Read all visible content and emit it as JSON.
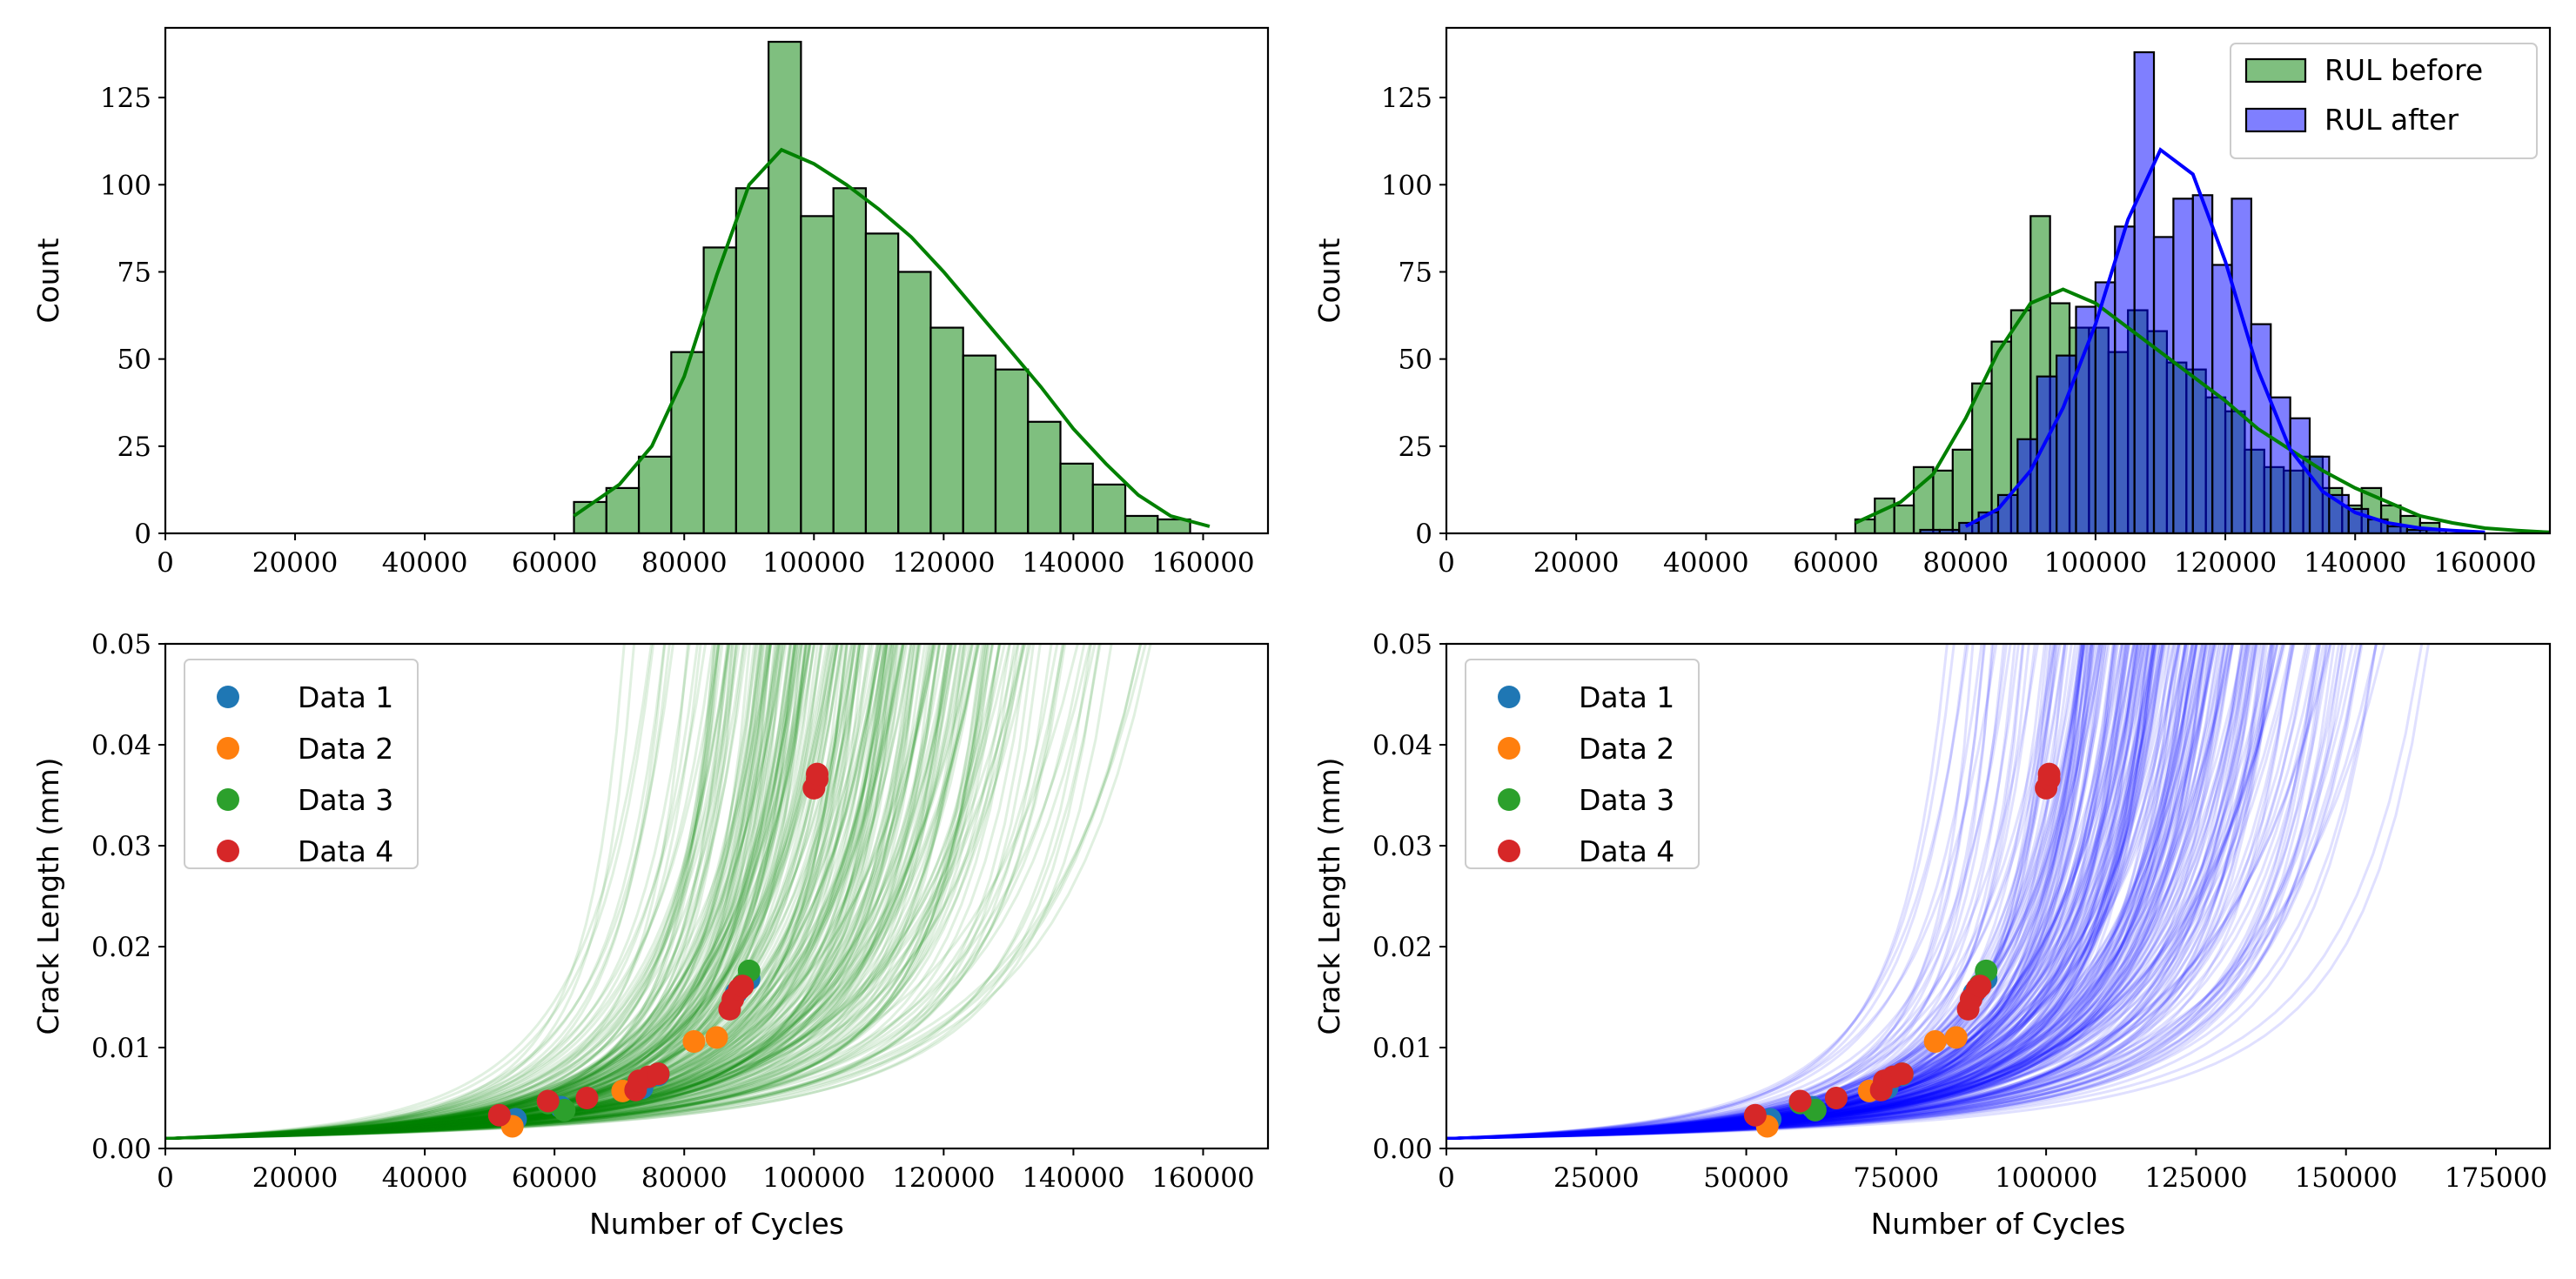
{
  "chart_data": [
    {
      "panel": "top-left",
      "type": "histogram",
      "ylabel": "Count",
      "xlim": [
        0,
        170000
      ],
      "ylim": [
        0,
        145
      ],
      "xticks": [
        0,
        20000,
        40000,
        60000,
        80000,
        100000,
        120000,
        140000,
        160000
      ],
      "yticks": [
        0,
        25,
        50,
        75,
        100,
        125
      ],
      "bin_start": 63000,
      "bin_width": 5000,
      "series": [
        {
          "color": "#008000",
          "counts": [
            9,
            13,
            22,
            52,
            82,
            99,
            141,
            91,
            99,
            86,
            75,
            59,
            51,
            47,
            32,
            20,
            14,
            5,
            4
          ],
          "kde_x": [
            63000,
            70000,
            75000,
            80000,
            85000,
            90000,
            95000,
            100000,
            105000,
            110000,
            115000,
            120000,
            125000,
            130000,
            135000,
            140000,
            145000,
            150000,
            155000,
            161000
          ],
          "kde_y": [
            5,
            14,
            25,
            45,
            74,
            100,
            110,
            106,
            100,
            93,
            85,
            75,
            64,
            53,
            42,
            30,
            20,
            11,
            5,
            2
          ]
        }
      ]
    },
    {
      "panel": "top-right",
      "type": "histogram",
      "ylabel": "Count",
      "xlim": [
        0,
        170000
      ],
      "ylim": [
        0,
        145
      ],
      "xticks": [
        0,
        20000,
        40000,
        60000,
        80000,
        100000,
        120000,
        140000,
        160000
      ],
      "yticks": [
        0,
        25,
        50,
        75,
        100,
        125
      ],
      "legend": "top-right",
      "series": [
        {
          "name": "RUL before",
          "color": "#008000",
          "bin_start": 63000,
          "bin_width": 3000,
          "counts": [
            4,
            10,
            8,
            19,
            18,
            24,
            43,
            55,
            64,
            91,
            66,
            59,
            59,
            52,
            64,
            58,
            49,
            47,
            39,
            35,
            24,
            19,
            18,
            22,
            13,
            8,
            13,
            8,
            5,
            3
          ],
          "kde_x": [
            63000,
            70000,
            75000,
            80000,
            85000,
            90000,
            95000,
            100000,
            105000,
            110000,
            115000,
            120000,
            125000,
            130000,
            135000,
            140000,
            145000,
            150000,
            155000,
            160000,
            165000,
            170000
          ],
          "kde_y": [
            3,
            9,
            17,
            33,
            52,
            66,
            70,
            66,
            59,
            52,
            45,
            38,
            30,
            24,
            18,
            13,
            9,
            5,
            3,
            1.5,
            0.8,
            0.3
          ]
        },
        {
          "name": "RUL after",
          "color": "#0000ff",
          "bin_start": 73000,
          "bin_width": 3000,
          "counts": [
            1,
            1,
            3,
            6,
            11,
            27,
            45,
            51,
            65,
            72,
            88,
            138,
            85,
            96,
            97,
            77,
            96,
            60,
            39,
            33,
            22,
            11,
            7,
            4,
            2,
            1,
            1
          ],
          "kde_x": [
            80000,
            85000,
            90000,
            95000,
            100000,
            105000,
            110000,
            115000,
            120000,
            125000,
            130000,
            135000,
            140000,
            145000,
            150000,
            155000,
            160000
          ],
          "kde_y": [
            2,
            7,
            18,
            36,
            60,
            90,
            110,
            103,
            78,
            47,
            24,
            12,
            6,
            3,
            1.5,
            0.8,
            0.3
          ]
        }
      ]
    },
    {
      "panel": "bottom-left",
      "type": "line+scatter",
      "xlabel": "Number of Cycles",
      "ylabel": "Crack Length (mm)",
      "xlim": [
        0,
        170000
      ],
      "ylim": [
        0,
        0.05
      ],
      "xticks": [
        0,
        20000,
        40000,
        60000,
        80000,
        100000,
        120000,
        140000,
        160000
      ],
      "yticks": [
        "0.00",
        "0.01",
        "0.02",
        "0.03",
        "0.04",
        "0.05"
      ],
      "legend": "top-left",
      "curve_color": "#008000",
      "curve_life_range": [
        63000,
        161000
      ],
      "initial_crack": 0.001
    },
    {
      "panel": "bottom-right",
      "type": "line+scatter",
      "xlabel": "Number of Cycles",
      "ylabel": "Crack Length (mm)",
      "xlim": [
        0,
        184000
      ],
      "ylim": [
        0,
        0.05
      ],
      "xticks": [
        0,
        25000,
        50000,
        75000,
        100000,
        125000,
        150000,
        175000
      ],
      "yticks": [
        "0.00",
        "0.01",
        "0.02",
        "0.03",
        "0.04",
        "0.05"
      ],
      "legend": "top-left",
      "curve_color": "#0000ff",
      "curve_life_range": [
        80000,
        175000
      ],
      "initial_crack": 0.001
    }
  ],
  "scatter_series": [
    {
      "name": "Data 1",
      "color": "#1f77b4",
      "points": [
        [
          54000,
          0.0029
        ],
        [
          61000,
          0.0041
        ],
        [
          73500,
          0.006
        ],
        [
          76000,
          0.0073
        ],
        [
          88000,
          0.0154
        ],
        [
          90000,
          0.0168
        ]
      ]
    },
    {
      "name": "Data 2",
      "color": "#ff7f0e",
      "points": [
        [
          53500,
          0.0022
        ],
        [
          70500,
          0.0057
        ],
        [
          81500,
          0.0106
        ],
        [
          85000,
          0.011
        ]
      ]
    },
    {
      "name": "Data 3",
      "color": "#2ca02c",
      "points": [
        [
          59000,
          0.0045
        ],
        [
          61500,
          0.0038
        ],
        [
          76000,
          0.0074
        ],
        [
          89000,
          0.0162
        ],
        [
          90000,
          0.0176
        ]
      ]
    },
    {
      "name": "Data 4",
      "color": "#d62728",
      "points": [
        [
          51500,
          0.0033
        ],
        [
          59000,
          0.0047
        ],
        [
          65000,
          0.005
        ],
        [
          72500,
          0.0058
        ],
        [
          73000,
          0.0067
        ],
        [
          74500,
          0.0071
        ],
        [
          76000,
          0.0074
        ],
        [
          87000,
          0.0138
        ],
        [
          87500,
          0.0148
        ],
        [
          88500,
          0.0158
        ],
        [
          89000,
          0.0161
        ],
        [
          100000,
          0.0357
        ],
        [
          100500,
          0.0366
        ],
        [
          100500,
          0.0371
        ]
      ]
    }
  ]
}
